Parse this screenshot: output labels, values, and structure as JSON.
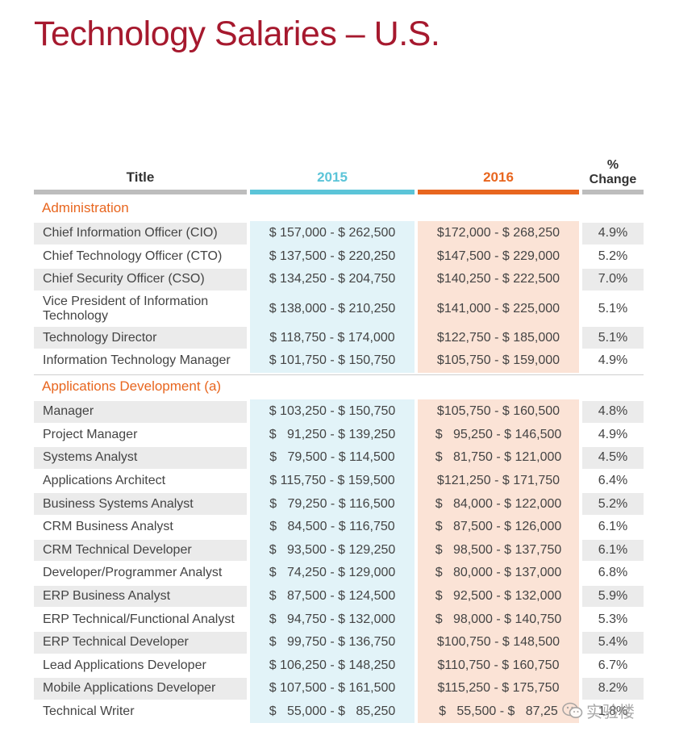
{
  "title": "Technology Salaries – U.S.",
  "headers": {
    "title": "Title",
    "y2015": "2015",
    "y2016": "2016",
    "change_line1": "%",
    "change_line2": "Change"
  },
  "colors": {
    "title": "#a6192e",
    "accent_2015": "#5bc4d8",
    "accent_2016": "#e8661f",
    "section_label": "#e8661f"
  },
  "sections": [
    {
      "label": "Administration",
      "rows": [
        {
          "title": "Chief Information Officer (CIO)",
          "y2015": "$ 157,000 - $ 262,500",
          "y2016": "$172,000 - $ 268,250",
          "change": "4.9%"
        },
        {
          "title": "Chief Technology Officer (CTO)",
          "y2015": "$ 137,500 - $ 220,250",
          "y2016": "$147,500 - $ 229,000",
          "change": "5.2%"
        },
        {
          "title": "Chief Security Officer (CSO)",
          "y2015": "$ 134,250 - $ 204,750",
          "y2016": "$140,250 - $ 222,500",
          "change": "7.0%"
        },
        {
          "title": "Vice President of Information Technology",
          "y2015": "$ 138,000 - $ 210,250",
          "y2016": "$141,000 - $ 225,000",
          "change": "5.1%"
        },
        {
          "title": "Technology Director",
          "y2015": "$ 118,750 - $ 174,000",
          "y2016": "$122,750 - $ 185,000",
          "change": "5.1%"
        },
        {
          "title": "Information Technology Manager",
          "y2015": "$ 101,750 - $ 150,750",
          "y2016": "$105,750 - $ 159,000",
          "change": "4.9%"
        }
      ]
    },
    {
      "label": "Applications Development (a)",
      "rows": [
        {
          "title": "Manager",
          "y2015": "$ 103,250 - $ 150,750",
          "y2016": "$105,750 - $ 160,500",
          "change": "4.8%"
        },
        {
          "title": "Project Manager",
          "y2015": "$   91,250 - $ 139,250",
          "y2016": "$   95,250 - $ 146,500",
          "change": "4.9%"
        },
        {
          "title": "Systems Analyst",
          "y2015": "$   79,500 - $ 114,500",
          "y2016": "$   81,750 - $ 121,000",
          "change": "4.5%"
        },
        {
          "title": "Applications Architect",
          "y2015": "$ 115,750 - $ 159,500",
          "y2016": "$121,250 - $ 171,750",
          "change": "6.4%"
        },
        {
          "title": "Business Systems Analyst",
          "y2015": "$   79,250 - $ 116,500",
          "y2016": "$   84,000 - $ 122,000",
          "change": "5.2%"
        },
        {
          "title": "CRM Business Analyst",
          "y2015": "$   84,500 - $ 116,750",
          "y2016": "$   87,500 - $ 126,000",
          "change": "6.1%"
        },
        {
          "title": "CRM Technical Developer",
          "y2015": "$   93,500 - $ 129,250",
          "y2016": "$   98,500 - $ 137,750",
          "change": "6.1%"
        },
        {
          "title": "Developer/Programmer Analyst",
          "y2015": "$   74,250 - $ 129,000",
          "y2016": "$   80,000 - $ 137,000",
          "change": "6.8%"
        },
        {
          "title": "ERP Business Analyst",
          "y2015": "$   87,500 - $ 124,500",
          "y2016": "$   92,500 - $ 132,000",
          "change": "5.9%"
        },
        {
          "title": "ERP Technical/Functional Analyst",
          "y2015": "$   94,750 - $ 132,000",
          "y2016": "$   98,000 - $ 140,750",
          "change": "5.3%"
        },
        {
          "title": "ERP Technical Developer",
          "y2015": "$   99,750 - $ 136,750",
          "y2016": "$100,750 - $ 148,500",
          "change": "5.4%"
        },
        {
          "title": "Lead Applications Developer",
          "y2015": "$ 106,250 - $ 148,250",
          "y2016": "$110,750 - $ 160,750",
          "change": "6.7%"
        },
        {
          "title": "Mobile Applications Developer",
          "y2015": "$ 107,500 - $ 161,500",
          "y2016": "$115,250 - $ 175,750",
          "change": "8.2%"
        },
        {
          "title": "Technical Writer",
          "y2015": "$   55,000 - $   85,250",
          "y2016": "$   55,500 - $   87,25",
          "change": "1.8%"
        }
      ]
    }
  ],
  "watermark": {
    "text": "实验楼",
    "icon": "wechat-icon"
  }
}
